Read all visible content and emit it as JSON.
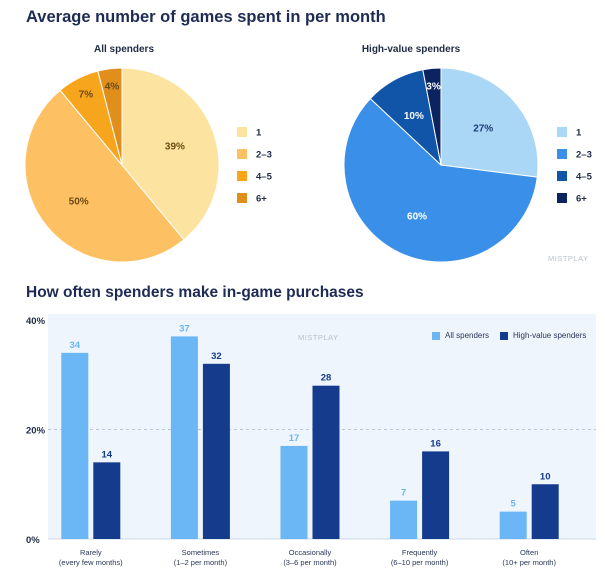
{
  "titles": {
    "top": "Average number of games spent in per month",
    "bottom": "How often spenders make in-game purchases"
  },
  "watermark": "MISTPLAY",
  "chart_data": [
    {
      "type": "pie",
      "title": "All spenders",
      "labels": [
        "1",
        "2–3",
        "4–5",
        "6+"
      ],
      "values": [
        39,
        50,
        7,
        4
      ],
      "value_labels": [
        "39%",
        "50%",
        "7%",
        "4%"
      ],
      "colors": [
        "#FDE3A0",
        "#FDC163",
        "#F8A51E",
        "#E08E1C"
      ],
      "legend": "right"
    },
    {
      "type": "pie",
      "title": "High-value spenders",
      "labels": [
        "1",
        "2–3",
        "4–5",
        "6+"
      ],
      "values": [
        27,
        60,
        10,
        3
      ],
      "value_labels": [
        "27%",
        "60%",
        "10%",
        "3%"
      ],
      "colors": [
        "#A9D7F5",
        "#3A8FE8",
        "#1155A8",
        "#0B2460"
      ],
      "legend": "right"
    },
    {
      "type": "bar",
      "categories": [
        [
          "Rarely",
          "(every few months)"
        ],
        [
          "Sometimes",
          "(1–2 per month)"
        ],
        [
          "Occasionally",
          "(3–6 per month)"
        ],
        [
          "Frequently",
          "(6–10 per month)"
        ],
        [
          "Often",
          "(10+ per month)"
        ]
      ],
      "series": [
        {
          "name": "All spenders",
          "values": [
            34,
            37,
            17,
            7,
            5
          ],
          "color": "#6BB6F5"
        },
        {
          "name": "High-value spenders",
          "values": [
            14,
            32,
            28,
            16,
            10
          ],
          "color": "#153B8C"
        }
      ],
      "yticks": [
        "0%",
        "20%",
        "40%"
      ],
      "ylim": [
        0,
        40
      ],
      "grid": "dashed at 20%",
      "legend": "top-right"
    }
  ]
}
